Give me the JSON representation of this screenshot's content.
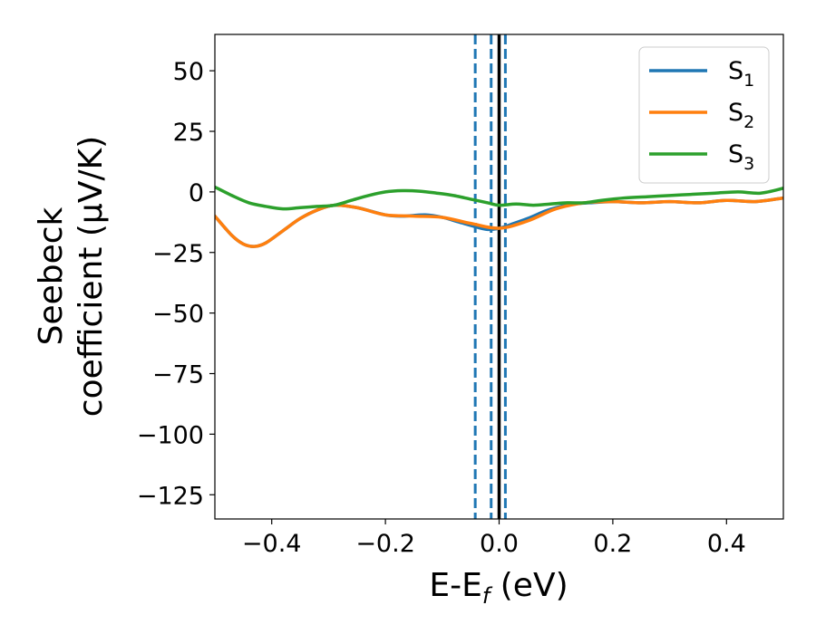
{
  "chart_data": {
    "type": "line",
    "xlabel": "E-E_f (eV)",
    "xlabel_parts": {
      "main": "E-E",
      "sub": "f",
      "rest": " (eV)"
    },
    "ylabel_line1": "Seebeck",
    "ylabel_line2": "coefficient  (μV/K)",
    "xlim": [
      -0.5,
      0.5
    ],
    "ylim": [
      -135,
      65
    ],
    "xticks": [
      -0.4,
      -0.2,
      0.0,
      0.2,
      0.4
    ],
    "xtick_labels": [
      "−0.4",
      "−0.2",
      "0.0",
      "0.2",
      "0.4"
    ],
    "yticks": [
      50,
      25,
      0,
      -25,
      -50,
      -75,
      -100,
      -125
    ],
    "ytick_labels": [
      "50",
      "25",
      "0",
      "−25",
      "−50",
      "−75",
      "−100",
      "−125"
    ],
    "legend_position": "top-right",
    "legend": [
      {
        "label": "S",
        "sub": "1",
        "color": "#1f77b4"
      },
      {
        "label": "S",
        "sub": "2",
        "color": "#ff7f0e"
      },
      {
        "label": "S",
        "sub": "3",
        "color": "#2ca02c"
      }
    ],
    "vertical_lines": [
      {
        "x": -0.042,
        "color": "#1f77b4",
        "style": "dashed"
      },
      {
        "x": -0.014,
        "color": "#1f77b4",
        "style": "dashed"
      },
      {
        "x": 0.011,
        "color": "#1f77b4",
        "style": "dashed"
      },
      {
        "x": 0.0,
        "color": "#000000",
        "style": "solid"
      }
    ],
    "series": [
      {
        "name": "S_1",
        "color": "#1f77b4",
        "x": [
          -0.5,
          -0.47,
          -0.45,
          -0.43,
          -0.41,
          -0.38,
          -0.35,
          -0.32,
          -0.29,
          -0.25,
          -0.2,
          -0.17,
          -0.13,
          -0.1,
          -0.07,
          -0.04,
          -0.02,
          0.0,
          0.02,
          0.05,
          0.08,
          0.1,
          0.13,
          0.16,
          0.2,
          0.25,
          0.3,
          0.35,
          0.4,
          0.45,
          0.5
        ],
        "y": [
          -10,
          -18,
          -21.5,
          -22.5,
          -21,
          -16,
          -11,
          -7.5,
          -5.5,
          -6.5,
          -9.5,
          -10,
          -9.5,
          -10.5,
          -12.5,
          -14.5,
          -15.5,
          -15,
          -13.5,
          -11,
          -8,
          -6.5,
          -5,
          -4.5,
          -4,
          -4.5,
          -4,
          -4.5,
          -3.5,
          -4,
          -2.5
        ]
      },
      {
        "name": "S_2",
        "color": "#ff7f0e",
        "x": [
          -0.5,
          -0.47,
          -0.45,
          -0.43,
          -0.41,
          -0.38,
          -0.35,
          -0.32,
          -0.29,
          -0.25,
          -0.2,
          -0.15,
          -0.1,
          -0.05,
          0.0,
          0.05,
          0.1,
          0.15,
          0.2,
          0.25,
          0.3,
          0.35,
          0.4,
          0.45,
          0.5
        ],
        "y": [
          -10,
          -18,
          -21.5,
          -22.5,
          -21,
          -16,
          -11,
          -7.5,
          -5.5,
          -6.5,
          -9.5,
          -10,
          -10.5,
          -13,
          -15,
          -12,
          -7,
          -4.5,
          -4,
          -4.5,
          -4,
          -4.5,
          -3.5,
          -4,
          -2.5
        ]
      },
      {
        "name": "S_3",
        "color": "#2ca02c",
        "x": [
          -0.5,
          -0.47,
          -0.44,
          -0.41,
          -0.38,
          -0.35,
          -0.32,
          -0.29,
          -0.26,
          -0.23,
          -0.2,
          -0.17,
          -0.14,
          -0.11,
          -0.08,
          -0.05,
          -0.02,
          0.0,
          0.03,
          0.06,
          0.09,
          0.12,
          0.15,
          0.18,
          0.22,
          0.26,
          0.3,
          0.34,
          0.38,
          0.42,
          0.46,
          0.5
        ],
        "y": [
          2,
          -1.5,
          -4.5,
          -6,
          -7,
          -6.5,
          -6,
          -5.5,
          -3.5,
          -1.5,
          0,
          0.5,
          0.3,
          -0.5,
          -1.5,
          -3,
          -4.5,
          -5.5,
          -5,
          -5.5,
          -5,
          -4.5,
          -4.5,
          -3.5,
          -2.5,
          -2,
          -1.5,
          -1,
          -0.5,
          0,
          -0.5,
          1.5
        ]
      }
    ]
  }
}
